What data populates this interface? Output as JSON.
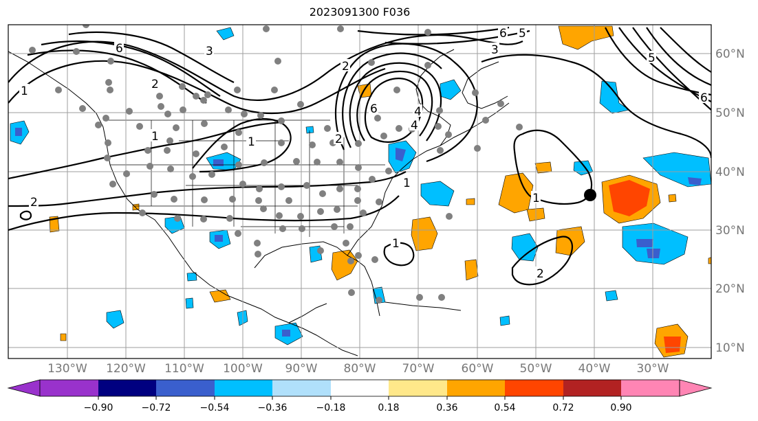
{
  "title": "2023091300 F036",
  "map": {
    "lat_labels": [
      "60°N",
      "50°N",
      "40°N",
      "30°N",
      "20°N",
      "10°N"
    ],
    "lon_labels": [
      "130°W",
      "120°W",
      "110°W",
      "100°W",
      "90°W",
      "80°W",
      "70°W",
      "60°W",
      "50°W",
      "40°W",
      "30°W"
    ],
    "contour_labels": [
      "6",
      "3",
      "2",
      "1",
      "6",
      "5",
      "3",
      "2",
      "6",
      "4",
      "4",
      "2",
      "1",
      "1",
      "2",
      "1",
      "1",
      "1",
      "6",
      "5",
      "2"
    ],
    "colors": {
      "gridline": "#9e9e9e",
      "coast": "#000000",
      "observation_dot": "#808080",
      "marker": "#000000"
    }
  },
  "colorbar": {
    "tick_labels": [
      "−0.90",
      "−0.72",
      "−0.54",
      "−0.36",
      "−0.18",
      "0.18",
      "0.36",
      "0.54",
      "0.72",
      "0.90"
    ],
    "colors": [
      "#9932cc",
      "#000080",
      "#3a5fcd",
      "#00bfff",
      "#b0e0fb",
      "#ffffff",
      "#ffe88a",
      "#ffa500",
      "#ff4500",
      "#b22222",
      "#ff85b4"
    ]
  }
}
